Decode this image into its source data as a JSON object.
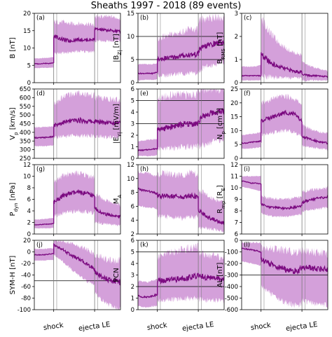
{
  "figure": {
    "title": "Sheaths 1997 - 2018 (89 events)",
    "x_tick_labels": [
      "shock",
      "ejecta LE"
    ]
  },
  "colors": {
    "band": "#cc8fd3",
    "line": "#7b0a80",
    "marker_line": "#7a7a7a",
    "ref_line": "#000000"
  },
  "chart_data": [
    {
      "type": "line",
      "panel": "(a)",
      "ylabel": "B [nT]",
      "ylim": [
        0,
        20
      ],
      "yticks": [
        0,
        5,
        10,
        15,
        20
      ],
      "ref_lines": [],
      "segments": {
        "pre": {
          "median": [
            5.5,
            5.4,
            5.6,
            5.5,
            5.8
          ],
          "lower": [
            4.2,
            4.2,
            4.3,
            4.3,
            4.4
          ],
          "upper": [
            7.0,
            7.0,
            7.1,
            7.2,
            7.4
          ]
        },
        "sheath": {
          "median": [
            13.5,
            12.5,
            12.0,
            12.5,
            12.3,
            12.5
          ],
          "lower": [
            8.5,
            8.5,
            8.8,
            9.0,
            9.0,
            9.0
          ],
          "upper": [
            17.5,
            17.5,
            17.0,
            17.0,
            17.0,
            16.5
          ]
        },
        "ejecta": {
          "median": [
            15.5,
            15.2,
            15.0,
            14.8
          ],
          "lower": [
            12.0,
            12.0,
            12.0,
            12.0
          ],
          "upper": [
            19.0,
            19.0,
            19.0,
            18.5
          ]
        }
      }
    },
    {
      "type": "line",
      "panel": "(b)",
      "ylabel": "|B_Z| [nT]",
      "ylim": [
        0,
        15
      ],
      "yticks": [
        0,
        5,
        10,
        15
      ],
      "ref_lines": [
        5,
        10
      ],
      "segments": {
        "pre": {
          "median": [
            2.0,
            2.0,
            2.0,
            2.0,
            2.3
          ],
          "lower": [
            0.5,
            0.6,
            0.6,
            0.6,
            0.7
          ],
          "upper": [
            4.0,
            4.0,
            4.0,
            4.0,
            4.2
          ]
        },
        "sheath": {
          "median": [
            5.0,
            5.3,
            5.5,
            5.8,
            6.0,
            6.2
          ],
          "lower": [
            1.5,
            1.5,
            1.8,
            2.0,
            2.0,
            2.0
          ],
          "upper": [
            9.5,
            10.0,
            10.5,
            11.0,
            11.5,
            11.5
          ]
        },
        "ejecta": {
          "median": [
            7.0,
            8.0,
            8.5,
            8.8
          ],
          "lower": [
            2.5,
            3.5,
            4.0,
            4.5
          ],
          "upper": [
            13.5,
            14.0,
            14.0,
            14.0
          ]
        }
      }
    },
    {
      "type": "line",
      "panel": "(c)",
      "ylabel": "B_RMS [nT]",
      "ylim": [
        0,
        3
      ],
      "yticks": [
        0,
        1,
        2,
        3
      ],
      "ref_lines": [],
      "segments": {
        "pre": {
          "median": [
            0.3,
            0.3,
            0.3,
            0.3,
            0.3
          ],
          "lower": [
            0.1,
            0.1,
            0.1,
            0.1,
            0.1
          ],
          "upper": [
            0.7,
            0.7,
            0.7,
            0.7,
            0.8
          ]
        },
        "sheath": {
          "median": [
            1.2,
            0.9,
            0.7,
            0.6,
            0.5,
            0.45
          ],
          "lower": [
            0.3,
            0.25,
            0.2,
            0.2,
            0.2,
            0.2
          ],
          "upper": [
            2.8,
            2.2,
            1.8,
            1.5,
            1.3,
            1.2
          ]
        },
        "ejecta": {
          "median": [
            0.35,
            0.3,
            0.3,
            0.25
          ],
          "lower": [
            0.1,
            0.1,
            0.1,
            0.1
          ],
          "upper": [
            0.9,
            0.7,
            0.6,
            0.5
          ]
        }
      }
    },
    {
      "type": "line",
      "panel": "(d)",
      "ylabel": "V_p [km/s]",
      "ylim": [
        250,
        650
      ],
      "yticks": [
        250,
        300,
        350,
        400,
        450,
        500,
        550,
        600,
        650
      ],
      "ref_lines": [],
      "segments": {
        "pre": {
          "median": [
            370,
            368,
            370,
            372,
            375
          ],
          "lower": [
            320,
            320,
            320,
            322,
            325
          ],
          "upper": [
            430,
            430,
            430,
            432,
            435
          ]
        },
        "sheath": {
          "median": [
            440,
            455,
            465,
            470,
            465,
            460
          ],
          "lower": [
            370,
            375,
            380,
            380,
            380,
            378
          ],
          "upper": [
            560,
            600,
            620,
            625,
            620,
            610
          ]
        },
        "ejecta": {
          "median": [
            460,
            458,
            455,
            455
          ],
          "lower": [
            378,
            375,
            372,
            370
          ],
          "upper": [
            600,
            595,
            590,
            585
          ]
        }
      }
    },
    {
      "type": "line",
      "panel": "(e)",
      "ylabel": "|E_Y| [mV/m]",
      "ylim": [
        0,
        6
      ],
      "yticks": [
        0,
        1,
        2,
        3,
        4,
        5,
        6
      ],
      "ref_lines": [
        3,
        5
      ],
      "segments": {
        "pre": {
          "median": [
            0.7,
            0.7,
            0.75,
            0.8,
            0.85
          ],
          "lower": [
            0.2,
            0.2,
            0.2,
            0.2,
            0.25
          ],
          "upper": [
            1.5,
            1.5,
            1.6,
            1.6,
            1.7
          ]
        },
        "sheath": {
          "median": [
            2.5,
            2.6,
            2.8,
            2.9,
            3.0,
            3.0
          ],
          "lower": [
            0.8,
            0.8,
            0.9,
            1.0,
            1.0,
            1.0
          ],
          "upper": [
            5.0,
            5.3,
            5.5,
            5.5,
            5.5,
            5.6
          ]
        },
        "ejecta": {
          "median": [
            3.3,
            3.8,
            4.0,
            4.1
          ],
          "lower": [
            1.0,
            1.3,
            1.5,
            1.6
          ],
          "upper": [
            5.8,
            6.0,
            6.0,
            6.0
          ]
        }
      }
    },
    {
      "type": "line",
      "panel": "(f)",
      "ylabel": "N_p [cm^-3]",
      "ylim": [
        0,
        25
      ],
      "yticks": [
        0,
        5,
        10,
        15,
        20,
        25
      ],
      "ref_lines": [],
      "segments": {
        "pre": {
          "median": [
            5.5,
            5.5,
            5.8,
            6.0,
            6.2
          ],
          "lower": [
            3.5,
            3.5,
            3.6,
            3.8,
            4.0
          ],
          "upper": [
            8.5,
            8.5,
            8.8,
            9.0,
            9.5
          ]
        },
        "sheath": {
          "median": [
            13.5,
            14.5,
            15.5,
            16.5,
            16.0,
            13.5
          ],
          "lower": [
            8.5,
            9.0,
            9.5,
            10.0,
            9.5,
            8.0
          ],
          "upper": [
            20.0,
            21.0,
            22.0,
            22.5,
            21.5,
            19.5
          ]
        },
        "ejecta": {
          "median": [
            8.0,
            6.8,
            6.0,
            5.5
          ],
          "lower": [
            4.5,
            4.0,
            3.5,
            3.2
          ],
          "upper": [
            12.0,
            10.5,
            9.5,
            9.0
          ]
        }
      }
    },
    {
      "type": "line",
      "panel": "(g)",
      "ylabel": "P_dyn [nPa]",
      "ylim": [
        0,
        12
      ],
      "yticks": [
        0,
        2,
        4,
        6,
        8,
        10,
        12
      ],
      "ref_lines": [],
      "segments": {
        "pre": {
          "median": [
            1.6,
            1.6,
            1.7,
            1.7,
            1.8
          ],
          "lower": [
            1.0,
            1.0,
            1.0,
            1.0,
            1.1
          ],
          "upper": [
            2.5,
            2.5,
            2.6,
            2.7,
            2.8
          ]
        },
        "sheath": {
          "median": [
            5.5,
            6.5,
            7.0,
            7.2,
            7.0,
            6.5
          ],
          "lower": [
            3.0,
            3.5,
            3.8,
            4.0,
            3.8,
            3.5
          ],
          "upper": [
            9.0,
            10.0,
            10.5,
            10.5,
            10.2,
            9.8
          ]
        },
        "ejecta": {
          "median": [
            4.5,
            3.5,
            3.2,
            3.0
          ],
          "lower": [
            2.0,
            1.8,
            1.6,
            1.5
          ],
          "upper": [
            7.0,
            6.0,
            5.5,
            5.0
          ]
        }
      }
    },
    {
      "type": "line",
      "panel": "(h)",
      "ylabel": "M_A",
      "ylim": [
        2,
        12
      ],
      "yticks": [
        2,
        4,
        6,
        8,
        10,
        12
      ],
      "ref_lines": [],
      "segments": {
        "pre": {
          "median": [
            8.5,
            8.3,
            8.2,
            8.0,
            7.8
          ],
          "lower": [
            6.0,
            6.0,
            5.8,
            5.8,
            5.6
          ],
          "upper": [
            11.0,
            10.8,
            10.8,
            10.5,
            10.3
          ]
        },
        "sheath": {
          "median": [
            7.5,
            7.5,
            7.4,
            7.3,
            7.5,
            7.3
          ],
          "lower": [
            4.5,
            4.5,
            4.4,
            4.3,
            4.5,
            4.4
          ],
          "upper": [
            10.5,
            10.8,
            10.5,
            10.5,
            10.8,
            10.5
          ]
        },
        "ejecta": {
          "median": [
            5.5,
            4.5,
            4.0,
            3.5
          ],
          "lower": [
            3.0,
            2.8,
            2.6,
            2.4
          ],
          "upper": [
            8.5,
            7.5,
            7.0,
            6.5
          ]
        }
      }
    },
    {
      "type": "line",
      "panel": "(i)",
      "ylabel": "R_mp [R_E]",
      "ylim": [
        6,
        12
      ],
      "yticks": [
        6,
        7,
        8,
        9,
        10,
        11,
        12
      ],
      "ref_lines": [],
      "segments": {
        "pre": {
          "median": [
            10.6,
            10.5,
            10.4,
            10.4,
            10.3
          ],
          "lower": [
            10.1,
            10.0,
            9.9,
            9.8,
            9.7
          ],
          "upper": [
            11.0,
            11.0,
            11.0,
            11.0,
            11.0
          ]
        },
        "sheath": {
          "median": [
            8.6,
            8.3,
            8.3,
            8.2,
            8.3,
            8.4
          ],
          "lower": [
            7.8,
            7.6,
            7.5,
            7.5,
            7.6,
            7.7
          ],
          "upper": [
            9.3,
            9.1,
            9.0,
            9.0,
            9.1,
            9.2
          ]
        },
        "ejecta": {
          "median": [
            8.7,
            9.0,
            9.1,
            9.2
          ],
          "lower": [
            7.9,
            8.1,
            8.2,
            8.3
          ],
          "upper": [
            9.7,
            9.8,
            9.9,
            10.0
          ]
        }
      }
    },
    {
      "type": "line",
      "panel": "(j)",
      "ylabel": "SYM-H [nT]",
      "ylim": [
        -100,
        20
      ],
      "yticks": [
        -100,
        -80,
        -60,
        -40,
        -20,
        0,
        20
      ],
      "ref_lines": [
        -50
      ],
      "segments": {
        "pre": {
          "median": [
            -5,
            -5,
            -5,
            -4,
            -3
          ],
          "lower": [
            -15,
            -15,
            -15,
            -14,
            -14
          ],
          "upper": [
            5,
            5,
            5,
            6,
            6
          ]
        },
        "sheath": {
          "median": [
            12,
            5,
            -5,
            -12,
            -20,
            -30
          ],
          "lower": [
            -5,
            -15,
            -28,
            -40,
            -50,
            -60
          ],
          "upper": [
            20,
            18,
            15,
            10,
            5,
            -5
          ]
        },
        "ejecta": {
          "median": [
            -35,
            -45,
            -50,
            -52
          ],
          "lower": [
            -70,
            -85,
            -95,
            -100
          ],
          "upper": [
            -5,
            -10,
            -15,
            -15
          ]
        }
      }
    },
    {
      "type": "line",
      "panel": "(k)",
      "ylabel": "PCN",
      "ylim": [
        0,
        6
      ],
      "yticks": [
        0,
        1,
        2,
        3,
        4,
        5,
        6
      ],
      "ref_lines": [
        2,
        5
      ],
      "segments": {
        "pre": {
          "median": [
            1.2,
            1.1,
            1.1,
            1.2,
            1.3
          ],
          "lower": [
            0.3,
            0.2,
            0.2,
            0.3,
            0.3
          ],
          "upper": [
            2.5,
            2.4,
            2.4,
            2.5,
            2.6
          ]
        },
        "sheath": {
          "median": [
            2.5,
            2.5,
            2.6,
            2.7,
            2.8,
            2.9
          ],
          "lower": [
            0.8,
            0.8,
            0.9,
            0.9,
            1.0,
            1.0
          ],
          "upper": [
            4.5,
            4.8,
            5.0,
            5.2,
            5.3,
            5.4
          ]
        },
        "ejecta": {
          "median": [
            2.9,
            2.8,
            2.7,
            2.6
          ],
          "lower": [
            0.9,
            0.8,
            0.8,
            0.7
          ],
          "upper": [
            5.0,
            4.8,
            4.6,
            4.5
          ]
        }
      }
    },
    {
      "type": "line",
      "panel": "(l)",
      "ylabel": "AL [nT]",
      "ylim": [
        -600,
        0
      ],
      "yticks": [
        -600,
        -500,
        -400,
        -300,
        -200,
        -100,
        0
      ],
      "ref_lines": [
        -300
      ],
      "segments": {
        "pre": {
          "median": [
            -70,
            -75,
            -80,
            -90,
            -100
          ],
          "lower": [
            -180,
            -190,
            -200,
            -210,
            -220
          ],
          "upper": [
            -20,
            -20,
            -20,
            -20,
            -25
          ]
        },
        "sheath": {
          "median": [
            -170,
            -200,
            -230,
            -250,
            -270,
            -250
          ],
          "lower": [
            -400,
            -450,
            -500,
            -540,
            -560,
            -550
          ],
          "upper": [
            -60,
            -70,
            -80,
            -90,
            -100,
            -90
          ]
        },
        "ejecta": {
          "median": [
            -230,
            -240,
            -250,
            -245
          ],
          "lower": [
            -520,
            -540,
            -560,
            -560
          ],
          "upper": [
            -90,
            -100,
            -110,
            -110
          ]
        }
      }
    }
  ]
}
